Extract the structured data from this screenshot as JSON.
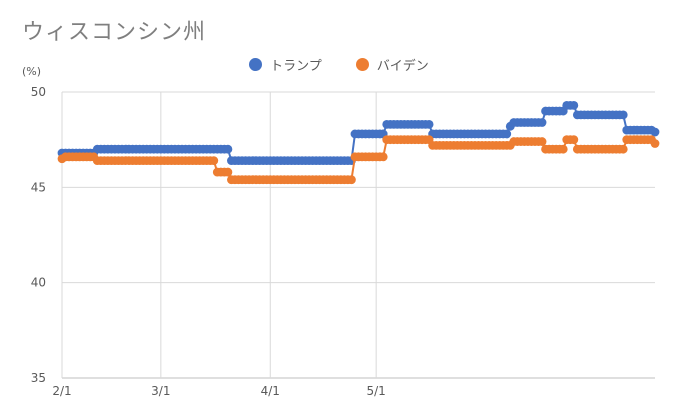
{
  "chart_data": {
    "type": "line",
    "title": "ウィスコンシン州",
    "y_unit": "(%)",
    "ylim": [
      35,
      50
    ],
    "y_ticks": [
      35,
      40,
      45,
      50
    ],
    "x_tick_labels": [
      "2/1",
      "3/1",
      "4/1",
      "5/1"
    ],
    "grid": true,
    "legend_position": "top",
    "series": [
      {
        "name": "トランプ",
        "color": "#4472c4",
        "values": [
          46.8,
          46.8,
          46.8,
          46.8,
          46.8,
          46.8,
          46.8,
          46.8,
          46.8,
          46.8,
          47.0,
          47.0,
          47.0,
          47.0,
          47.0,
          47.0,
          47.0,
          47.0,
          47.0,
          47.0,
          47.0,
          47.0,
          47.0,
          47.0,
          47.0,
          47.0,
          47.0,
          47.0,
          47.0,
          47.0,
          47.0,
          47.0,
          47.0,
          47.0,
          47.0,
          47.0,
          47.0,
          47.0,
          47.0,
          47.0,
          47.0,
          47.0,
          47.0,
          47.0,
          47.0,
          47.0,
          47.0,
          47.0,
          46.4,
          46.4,
          46.4,
          46.4,
          46.4,
          46.4,
          46.4,
          46.4,
          46.4,
          46.4,
          46.4,
          46.4,
          46.4,
          46.4,
          46.4,
          46.4,
          46.4,
          46.4,
          46.4,
          46.4,
          46.4,
          46.4,
          46.4,
          46.4,
          46.4,
          46.4,
          46.4,
          46.4,
          46.4,
          46.4,
          46.4,
          46.4,
          46.4,
          46.4,
          46.4,
          47.8,
          47.8,
          47.8,
          47.8,
          47.8,
          47.8,
          47.8,
          47.8,
          47.8,
          48.3,
          48.3,
          48.3,
          48.3,
          48.3,
          48.3,
          48.3,
          48.3,
          48.3,
          48.3,
          48.3,
          48.3,
          48.3,
          47.8,
          47.8,
          47.8,
          47.8,
          47.8,
          47.8,
          47.8,
          47.8,
          47.8,
          47.8,
          47.8,
          47.8,
          47.8,
          47.8,
          47.8,
          47.8,
          47.8,
          47.8,
          47.8,
          47.8,
          47.8,
          47.8,
          48.2,
          48.4,
          48.4,
          48.4,
          48.4,
          48.4,
          48.4,
          48.4,
          48.4,
          48.4,
          49.0,
          49.0,
          49.0,
          49.0,
          49.0,
          49.0,
          49.3,
          49.3,
          49.3,
          48.8,
          48.8,
          48.8,
          48.8,
          48.8,
          48.8,
          48.8,
          48.8,
          48.8,
          48.8,
          48.8,
          48.8,
          48.8,
          48.8,
          48.0,
          48.0,
          48.0,
          48.0,
          48.0,
          48.0,
          48.0,
          48.0,
          47.9
        ]
      },
      {
        "name": "バイデン",
        "color": "#ed7d31",
        "values": [
          46.5,
          46.6,
          46.6,
          46.6,
          46.6,
          46.6,
          46.6,
          46.6,
          46.6,
          46.6,
          46.4,
          46.4,
          46.4,
          46.4,
          46.4,
          46.4,
          46.4,
          46.4,
          46.4,
          46.4,
          46.4,
          46.4,
          46.4,
          46.4,
          46.4,
          46.4,
          46.4,
          46.4,
          46.4,
          46.4,
          46.4,
          46.4,
          46.4,
          46.4,
          46.4,
          46.4,
          46.4,
          46.4,
          46.4,
          46.4,
          46.4,
          46.4,
          46.4,
          46.4,
          45.8,
          45.8,
          45.8,
          45.8,
          45.4,
          45.4,
          45.4,
          45.4,
          45.4,
          45.4,
          45.4,
          45.4,
          45.4,
          45.4,
          45.4,
          45.4,
          45.4,
          45.4,
          45.4,
          45.4,
          45.4,
          45.4,
          45.4,
          45.4,
          45.4,
          45.4,
          45.4,
          45.4,
          45.4,
          45.4,
          45.4,
          45.4,
          45.4,
          45.4,
          45.4,
          45.4,
          45.4,
          45.4,
          45.4,
          46.6,
          46.6,
          46.6,
          46.6,
          46.6,
          46.6,
          46.6,
          46.6,
          46.6,
          47.5,
          47.5,
          47.5,
          47.5,
          47.5,
          47.5,
          47.5,
          47.5,
          47.5,
          47.5,
          47.5,
          47.5,
          47.5,
          47.2,
          47.2,
          47.2,
          47.2,
          47.2,
          47.2,
          47.2,
          47.2,
          47.2,
          47.2,
          47.2,
          47.2,
          47.2,
          47.2,
          47.2,
          47.2,
          47.2,
          47.2,
          47.2,
          47.2,
          47.2,
          47.2,
          47.2,
          47.4,
          47.4,
          47.4,
          47.4,
          47.4,
          47.4,
          47.4,
          47.4,
          47.4,
          47.0,
          47.0,
          47.0,
          47.0,
          47.0,
          47.0,
          47.5,
          47.5,
          47.5,
          47.0,
          47.0,
          47.0,
          47.0,
          47.0,
          47.0,
          47.0,
          47.0,
          47.0,
          47.0,
          47.0,
          47.0,
          47.0,
          47.0,
          47.5,
          47.5,
          47.5,
          47.5,
          47.5,
          47.5,
          47.5,
          47.5,
          47.3
        ]
      }
    ]
  }
}
